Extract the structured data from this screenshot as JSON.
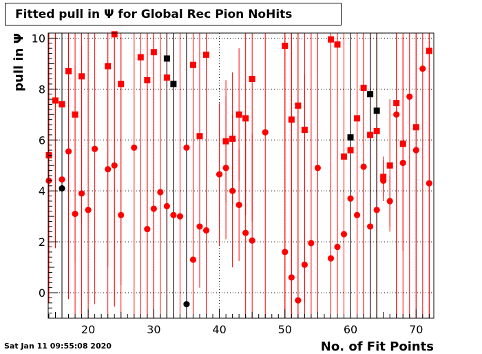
{
  "title": "Fitted pull in  Ψ  for Global Rec Pion NoHits",
  "timestamp": "Sat Jan 11 09:55:08 2020",
  "chart_data": {
    "type": "scatter",
    "title": "Fitted pull in  Ψ  for Global Rec Pion NoHits",
    "xlabel": "No. of Fit Points",
    "ylabel": "pull in  Ψ",
    "xlim": [
      13.9,
      72.7
    ],
    "ylim": [
      -1.0,
      10.2
    ],
    "x_ticks": [
      20,
      30,
      40,
      50,
      60,
      70
    ],
    "y_ticks": [
      0,
      2,
      4,
      6,
      8,
      10
    ],
    "grid": true,
    "colors": {
      "primary": "#ff0000",
      "secondary": "#000000"
    },
    "series": [
      {
        "marker": "square",
        "color": "#ff0000",
        "points": [
          {
            "x": 14,
            "y": 5.4,
            "err": 5.8
          },
          {
            "x": 15,
            "y": 7.55,
            "err": 5.8
          },
          {
            "x": 16,
            "y": 7.4,
            "err": 5.8
          },
          {
            "x": 17,
            "y": 8.7,
            "err": 7.4
          },
          {
            "x": 18,
            "y": 7.0,
            "err": 5.8
          },
          {
            "x": 19,
            "y": 8.5,
            "err": 5.8
          },
          {
            "x": 23,
            "y": 8.9,
            "err": 7.9
          },
          {
            "x": 24,
            "y": 10.15,
            "err": 10.7
          },
          {
            "x": 25,
            "y": 8.2,
            "err": 7.9
          },
          {
            "x": 28,
            "y": 9.25,
            "err": 11.0
          },
          {
            "x": 29,
            "y": 8.35,
            "err": 11.0
          },
          {
            "x": 30,
            "y": 9.45,
            "err": 11.0
          },
          {
            "x": 32,
            "y": 8.45,
            "err": 11.0
          },
          {
            "x": 36,
            "y": 8.95,
            "err": 11.0
          },
          {
            "x": 37,
            "y": 6.15,
            "err": 5.9
          },
          {
            "x": 38,
            "y": 9.35,
            "err": 11.0
          },
          {
            "x": 41,
            "y": 5.95,
            "err": 2.4
          },
          {
            "x": 42,
            "y": 6.05,
            "err": 2.6
          },
          {
            "x": 43,
            "y": 7.0,
            "err": 2.6
          },
          {
            "x": 44,
            "y": 6.85,
            "err": 3.8
          },
          {
            "x": 45,
            "y": 8.4,
            "err": 5.6
          },
          {
            "x": 50,
            "y": 9.7,
            "err": 11.0
          },
          {
            "x": 51,
            "y": 6.8,
            "err": 11.0
          },
          {
            "x": 52,
            "y": 7.35,
            "err": 11.0
          },
          {
            "x": 53,
            "y": 6.4,
            "err": 6.8
          },
          {
            "x": 57,
            "y": 9.95,
            "err": 11.0
          },
          {
            "x": 58,
            "y": 9.75,
            "err": 11.0
          },
          {
            "x": 59,
            "y": 5.35,
            "err": 2.2
          },
          {
            "x": 60,
            "y": 5.6,
            "err": 2.0
          },
          {
            "x": 61,
            "y": 6.85,
            "err": 11.0
          },
          {
            "x": 62,
            "y": 8.05,
            "err": 11.0
          },
          {
            "x": 63,
            "y": 6.2,
            "err": 11.0
          },
          {
            "x": 64,
            "y": 6.35,
            "err": 11.0
          },
          {
            "x": 65,
            "y": 4.55,
            "err": 0.8
          },
          {
            "x": 66,
            "y": 5.0,
            "err": 2.6
          },
          {
            "x": 67,
            "y": 7.45,
            "err": 11.0
          },
          {
            "x": 68,
            "y": 5.85,
            "err": 4.2
          },
          {
            "x": 70,
            "y": 6.5,
            "err": 11.0
          },
          {
            "x": 72,
            "y": 9.5,
            "err": 11.0
          }
        ]
      },
      {
        "marker": "circle",
        "color": "#ff0000",
        "points": [
          {
            "x": 14,
            "y": 4.4,
            "err": 4.4
          },
          {
            "x": 16,
            "y": 4.45,
            "err": 5.8
          },
          {
            "x": 17,
            "y": 5.55,
            "err": 5.8
          },
          {
            "x": 18,
            "y": 3.1,
            "err": 5.8
          },
          {
            "x": 19,
            "y": 3.9,
            "err": 5.8
          },
          {
            "x": 20,
            "y": 3.25,
            "err": 11.0
          },
          {
            "x": 21,
            "y": 5.65,
            "err": 6.1
          },
          {
            "x": 23,
            "y": 4.85,
            "err": 6.1
          },
          {
            "x": 24,
            "y": 5.0,
            "err": 5.5
          },
          {
            "x": 25,
            "y": 3.05,
            "err": 7.0
          },
          {
            "x": 27,
            "y": 5.7,
            "err": 11.0
          },
          {
            "x": 29,
            "y": 2.5,
            "err": 11.0
          },
          {
            "x": 30,
            "y": 3.3,
            "err": 11.0
          },
          {
            "x": 31,
            "y": 3.95,
            "err": 11.0
          },
          {
            "x": 32,
            "y": 3.4,
            "err": 11.0
          },
          {
            "x": 33,
            "y": 3.05,
            "err": 11.0
          },
          {
            "x": 34,
            "y": 3.0,
            "err": 11.0
          },
          {
            "x": 35,
            "y": 5.7,
            "err": 11.0
          },
          {
            "x": 36,
            "y": 1.3,
            "err": 11.0
          },
          {
            "x": 37,
            "y": 2.6,
            "err": 2.4
          },
          {
            "x": 38,
            "y": 2.45,
            "err": 11.0
          },
          {
            "x": 40,
            "y": 4.65,
            "err": 2.8
          },
          {
            "x": 41,
            "y": 4.9,
            "err": 2.8
          },
          {
            "x": 42,
            "y": 4.0,
            "err": 3.0
          },
          {
            "x": 43,
            "y": 3.45,
            "err": 2.2
          },
          {
            "x": 44,
            "y": 2.35,
            "err": 4.5
          },
          {
            "x": 45,
            "y": 2.05,
            "err": 4.2
          },
          {
            "x": 47,
            "y": 6.3,
            "err": 11.0
          },
          {
            "x": 50,
            "y": 1.6,
            "err": 11.0
          },
          {
            "x": 51,
            "y": 0.6,
            "err": 11.0
          },
          {
            "x": 52,
            "y": -0.3,
            "err": 11.0
          },
          {
            "x": 53,
            "y": 1.1,
            "err": 7.5
          },
          {
            "x": 54,
            "y": 1.95,
            "err": 11.0
          },
          {
            "x": 55,
            "y": 4.9,
            "err": 11.0
          },
          {
            "x": 57,
            "y": 1.35,
            "err": 11.0
          },
          {
            "x": 58,
            "y": 1.8,
            "err": 11.0
          },
          {
            "x": 59,
            "y": 2.3,
            "err": 11.0
          },
          {
            "x": 60,
            "y": 3.7,
            "err": 11.0
          },
          {
            "x": 61,
            "y": 3.05,
            "err": 11.0
          },
          {
            "x": 62,
            "y": 4.95,
            "err": 11.0
          },
          {
            "x": 63,
            "y": 2.6,
            "err": 11.0
          },
          {
            "x": 64,
            "y": 3.25,
            "err": 11.0
          },
          {
            "x": 65,
            "y": 4.4,
            "err": 0.8
          },
          {
            "x": 66,
            "y": 3.6,
            "err": 1.0
          },
          {
            "x": 67,
            "y": 7.0,
            "err": 11.0
          },
          {
            "x": 68,
            "y": 5.1,
            "err": 11.0
          },
          {
            "x": 69,
            "y": 7.7,
            "err": 11.0
          },
          {
            "x": 70,
            "y": 5.6,
            "err": 11.0
          },
          {
            "x": 71,
            "y": 8.8,
            "err": 11.0
          },
          {
            "x": 72,
            "y": 4.3,
            "err": 11.0
          }
        ]
      },
      {
        "marker": "square",
        "color": "#000000",
        "points": [
          {
            "x": 32,
            "y": 9.2,
            "err": 11.0
          },
          {
            "x": 33,
            "y": 8.2,
            "err": 11.0
          },
          {
            "x": 60,
            "y": 6.1,
            "err": 11.0
          },
          {
            "x": 63,
            "y": 7.8,
            "err": 11.0
          },
          {
            "x": 64,
            "y": 7.15,
            "err": 11.0
          }
        ]
      },
      {
        "marker": "circle",
        "color": "#000000",
        "points": [
          {
            "x": 16,
            "y": 4.1,
            "err": 11.0
          },
          {
            "x": 35,
            "y": -0.45,
            "err": 11.0
          }
        ]
      }
    ]
  }
}
